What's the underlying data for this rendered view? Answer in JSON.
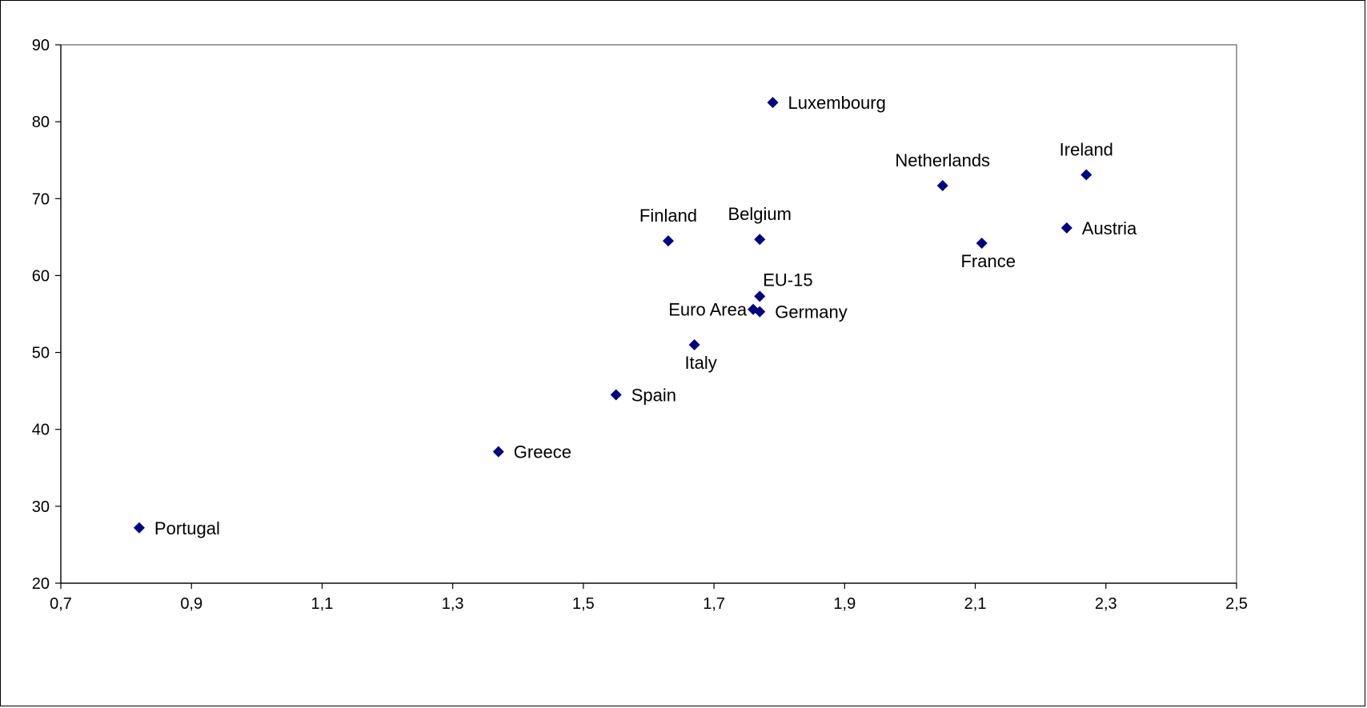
{
  "chart_data": {
    "type": "scatter",
    "title": "",
    "xlabel": "",
    "ylabel": "",
    "xlim": [
      0.7,
      2.5
    ],
    "ylim": [
      20,
      90
    ],
    "x_ticks": [
      "0,7",
      "0,9",
      "1,1",
      "1,3",
      "1,5",
      "1,7",
      "1,9",
      "2,1",
      "2,3",
      "2,5"
    ],
    "y_ticks": [
      "20",
      "30",
      "40",
      "50",
      "60",
      "70",
      "80",
      "90"
    ],
    "grid": false,
    "legend": "none",
    "marker": "diamond",
    "marker_color": "#000080",
    "points": [
      {
        "label": "Portugal",
        "x": 0.82,
        "y": 27.2,
        "label_pos": "right"
      },
      {
        "label": "Greece",
        "x": 1.37,
        "y": 37.1,
        "label_pos": "right"
      },
      {
        "label": "Spain",
        "x": 1.55,
        "y": 44.5,
        "label_pos": "right"
      },
      {
        "label": "Italy",
        "x": 1.67,
        "y": 51.0,
        "label_pos": "below"
      },
      {
        "label": "Finland",
        "x": 1.63,
        "y": 64.5,
        "label_pos": "above"
      },
      {
        "label": "Euro Area",
        "x": 1.76,
        "y": 55.6,
        "label_pos": "left"
      },
      {
        "label": "Germany",
        "x": 1.77,
        "y": 55.3,
        "label_pos": "right"
      },
      {
        "label": "EU-15",
        "x": 1.77,
        "y": 57.3,
        "label_pos": "above-right"
      },
      {
        "label": "Belgium",
        "x": 1.77,
        "y": 64.7,
        "label_pos": "above"
      },
      {
        "label": "Luxembourg",
        "x": 1.79,
        "y": 82.5,
        "label_pos": "right"
      },
      {
        "label": "Netherlands",
        "x": 2.05,
        "y": 71.7,
        "label_pos": "above"
      },
      {
        "label": "France",
        "x": 2.11,
        "y": 64.2,
        "label_pos": "below"
      },
      {
        "label": "Austria",
        "x": 2.24,
        "y": 66.2,
        "label_pos": "right"
      },
      {
        "label": "Ireland",
        "x": 2.27,
        "y": 73.1,
        "label_pos": "above"
      }
    ]
  }
}
